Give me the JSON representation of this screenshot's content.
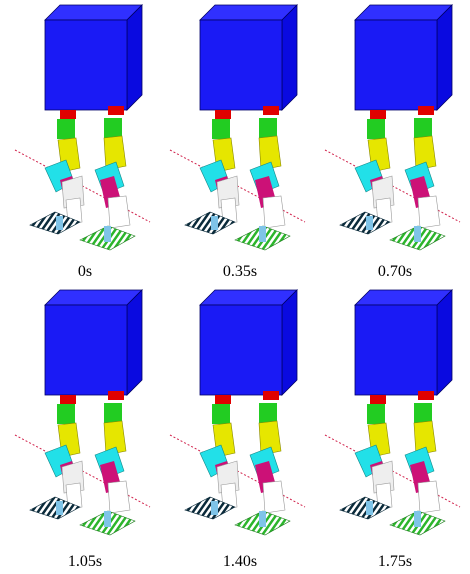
{
  "captions": [
    "0s",
    "0.35s",
    "0.70s",
    "1.05s",
    "1.40s",
    "1.75s"
  ]
}
